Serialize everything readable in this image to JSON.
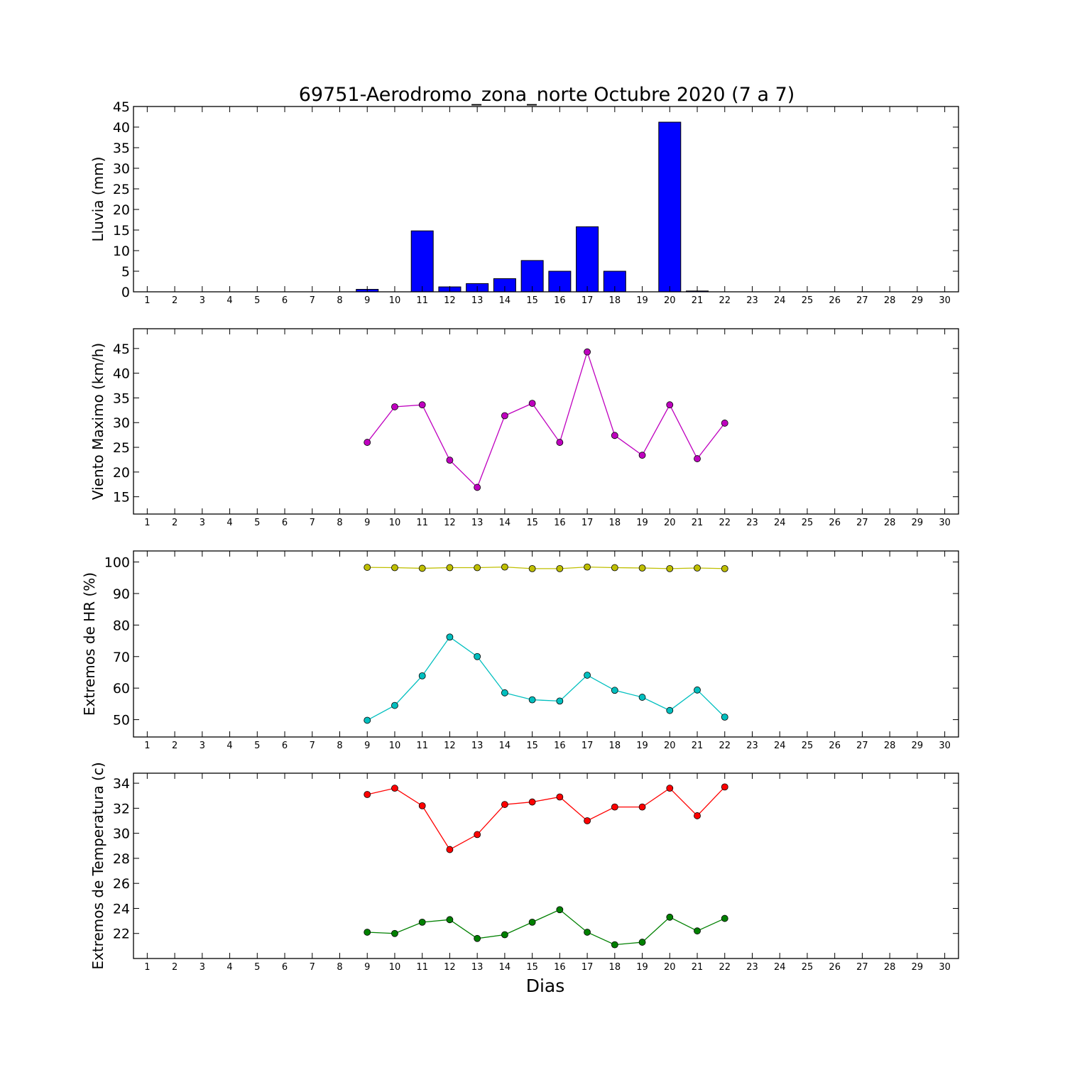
{
  "chart_data": {
    "title": "69751-Aerodromo_zona_norte Octubre 2020  (7 a 7)",
    "xlabel": "Dias",
    "x_ticks": [
      1,
      2,
      3,
      4,
      5,
      6,
      7,
      8,
      9,
      10,
      11,
      12,
      13,
      14,
      15,
      16,
      17,
      18,
      19,
      20,
      21,
      22,
      23,
      24,
      25,
      26,
      27,
      28,
      29,
      30
    ],
    "xlim": [
      0.5,
      30.5
    ],
    "panels": [
      {
        "type": "bar",
        "ylabel": "Lluvia (mm)",
        "ylim": [
          0,
          45
        ],
        "y_ticks": [
          0,
          5,
          10,
          15,
          20,
          25,
          30,
          35,
          40,
          45
        ],
        "series": [
          {
            "color": "#0000ff",
            "x": [
              9,
              10,
              11,
              12,
              13,
              14,
              15,
              16,
              17,
              18,
              19,
              20,
              21
            ],
            "values": [
              0.6,
              0,
              14.8,
              1.2,
              2.0,
              3.2,
              7.6,
              5.0,
              15.8,
              5.0,
              0,
              41.2,
              0.2
            ]
          }
        ]
      },
      {
        "type": "line",
        "ylabel": "Viento Maximo (km/h)",
        "ylim": [
          11.5,
          49
        ],
        "y_ticks": [
          15,
          20,
          25,
          30,
          35,
          40,
          45
        ],
        "series": [
          {
            "color": "#bf00bf",
            "x": [
              9,
              10,
              11,
              12,
              13,
              14,
              15,
              16,
              17,
              18,
              19,
              20,
              21,
              22
            ],
            "values": [
              26.0,
              33.2,
              33.6,
              22.4,
              16.9,
              31.4,
              33.9,
              26.0,
              44.3,
              27.4,
              23.4,
              33.6,
              22.7,
              29.9
            ]
          }
        ]
      },
      {
        "type": "line",
        "ylabel": "Extremos de HR (%)",
        "ylim": [
          44.5,
          103.5
        ],
        "y_ticks": [
          50,
          60,
          70,
          80,
          90,
          100
        ],
        "series": [
          {
            "color": "#bfbf00",
            "x": [
              9,
              10,
              11,
              12,
              13,
              14,
              15,
              16,
              17,
              18,
              19,
              20,
              21,
              22
            ],
            "values": [
              98.3,
              98.2,
              98.0,
              98.2,
              98.2,
              98.4,
              97.9,
              97.9,
              98.4,
              98.2,
              98.1,
              97.9,
              98.1,
              97.9
            ]
          },
          {
            "color": "#00bfbf",
            "x": [
              9,
              10,
              11,
              12,
              13,
              14,
              15,
              16,
              17,
              18,
              19,
              20,
              21,
              22
            ],
            "values": [
              49.8,
              54.5,
              63.9,
              76.2,
              70.0,
              58.5,
              56.3,
              55.9,
              64.1,
              59.3,
              57.1,
              52.9,
              59.4,
              50.8
            ]
          }
        ]
      },
      {
        "type": "line",
        "ylabel": "Extremos de Temperatura (c)",
        "ylim": [
          20.0,
          34.8
        ],
        "y_ticks": [
          22,
          24,
          26,
          28,
          30,
          32,
          34
        ],
        "series": [
          {
            "color": "#ff0000",
            "x": [
              9,
              10,
              11,
              12,
              13,
              14,
              15,
              16,
              17,
              18,
              19,
              20,
              21,
              22
            ],
            "values": [
              33.1,
              33.6,
              32.2,
              28.7,
              29.9,
              32.3,
              32.5,
              32.9,
              31.0,
              32.1,
              32.1,
              33.6,
              31.4,
              33.7
            ]
          },
          {
            "color": "#008000",
            "x": [
              9,
              10,
              11,
              12,
              13,
              14,
              15,
              16,
              17,
              18,
              19,
              20,
              21,
              22
            ],
            "values": [
              22.1,
              22.0,
              22.9,
              23.1,
              21.6,
              21.9,
              22.9,
              23.9,
              22.1,
              21.1,
              21.3,
              23.3,
              22.2,
              23.2
            ]
          }
        ]
      }
    ]
  }
}
